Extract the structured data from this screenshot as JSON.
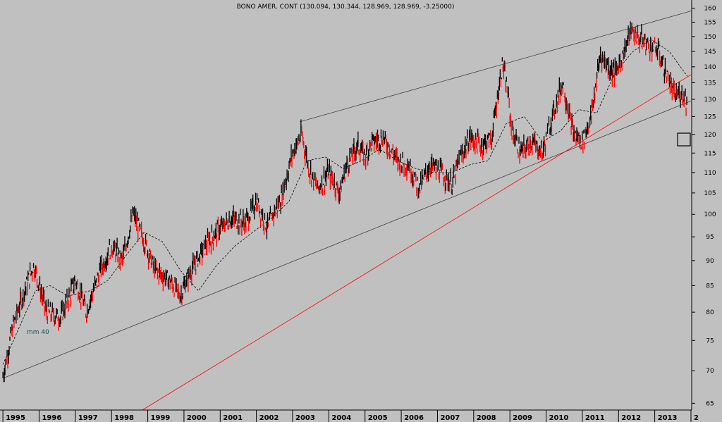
{
  "chart_data": {
    "type": "candlestick",
    "title": "BONO AMER. CONT (130.094, 130.344, 128.969, 128.969, -3.25000)",
    "y_axis": {
      "position": "right",
      "range": [
        64,
        162
      ],
      "ticks": [
        65,
        70,
        75,
        80,
        85,
        90,
        95,
        100,
        105,
        110,
        115,
        120,
        125,
        130,
        135,
        140,
        145,
        150,
        155,
        160
      ],
      "scale": "log"
    },
    "x_axis": {
      "ticks": [
        "1995",
        "1996",
        "1997",
        "1998",
        "1999",
        "2000",
        "2001",
        "2002",
        "2003",
        "2004",
        "2005",
        "2006",
        "2007",
        "2008",
        "2009",
        "2010",
        "2011",
        "2012",
        "2013",
        "2"
      ]
    },
    "colors": {
      "background": "#c0c0c0",
      "up": "#000000",
      "down": "#ff0000",
      "channel": "#404040",
      "trend": "#ff0000",
      "ma": "#000000"
    },
    "moving_average_label": "mm 40",
    "series": [
      {
        "type": "price",
        "x": [
          1995.0,
          1995.3,
          1995.7,
          1995.85,
          1996.2,
          1996.6,
          1997.0,
          1997.3,
          1997.7,
          1998.0,
          1998.3,
          1998.6,
          1998.8,
          1999.2,
          1999.6,
          1999.9,
          2000.2,
          2000.6,
          2000.9,
          2001.3,
          2001.7,
          2002.0,
          2002.3,
          2002.7,
          2003.0,
          2003.25,
          2003.45,
          2003.7,
          2004.0,
          2004.3,
          2004.5,
          2004.8,
          2005.0,
          2005.2,
          2005.5,
          2005.9,
          2006.2,
          2006.5,
          2006.8,
          2007.1,
          2007.4,
          2007.6,
          2007.9,
          2008.2,
          2008.5,
          2008.8,
          2008.95,
          2009.05,
          2009.3,
          2009.6,
          2009.9,
          2010.2,
          2010.45,
          2010.75,
          2011.0,
          2011.25,
          2011.5,
          2011.7,
          2011.9,
          2012.1,
          2012.35,
          2012.6,
          2012.85,
          2013.1,
          2013.3,
          2013.55,
          2013.75,
          2013.9
        ],
        "close": [
          69,
          78,
          86,
          89,
          80,
          79,
          86,
          80,
          88,
          93,
          90,
          100,
          96,
          88,
          86,
          83,
          88,
          93,
          96,
          99,
          98,
          103,
          97,
          104,
          115,
          120,
          111,
          106,
          110,
          105,
          112,
          117,
          114,
          118,
          119,
          113,
          112,
          106,
          112,
          110,
          107,
          113,
          119,
          117,
          119,
          141,
          131,
          121,
          115,
          118,
          115,
          126,
          135,
          120,
          118,
          125,
          144,
          140,
          138,
          143,
          152,
          149,
          147,
          145,
          138,
          131,
          132,
          129
        ]
      },
      {
        "type": "moving_average",
        "name": "mm 40",
        "x": [
          1995.0,
          1995.5,
          1995.9,
          1996.3,
          1996.8,
          1997.4,
          1997.9,
          1998.4,
          1998.9,
          1999.4,
          1999.9,
          2000.4,
          2000.9,
          2001.4,
          2001.9,
          2002.4,
          2002.9,
          2003.4,
          2003.9,
          2004.4,
          2004.9,
          2005.4,
          2005.9,
          2006.4,
          2006.9,
          2007.4,
          2007.9,
          2008.4,
          2008.9,
          2009.4,
          2009.9,
          2010.4,
          2010.9,
          2011.4,
          2011.9,
          2012.4,
          2012.9,
          2013.4,
          2013.9
        ],
        "y": [
          71,
          78,
          84,
          85,
          83,
          84,
          86,
          91,
          96,
          94,
          88,
          84,
          89,
          93,
          96,
          99,
          103,
          113,
          114,
          111,
          113,
          116,
          113,
          111,
          110,
          110,
          112,
          113,
          123,
          125,
          118,
          121,
          127,
          126,
          138,
          145,
          149,
          145,
          137
        ]
      }
    ],
    "lines": [
      {
        "type": "channel-upper",
        "x": [
          2003.2,
          2014.0
        ],
        "y": [
          123.5,
          159.0
        ]
      },
      {
        "type": "channel-lower",
        "x": [
          1995.0,
          2014.0
        ],
        "y": [
          68.8,
          129.5
        ]
      },
      {
        "type": "trend-support",
        "x": [
          1998.85,
          2014.0
        ],
        "y": [
          64.0,
          137.5
        ]
      }
    ]
  }
}
